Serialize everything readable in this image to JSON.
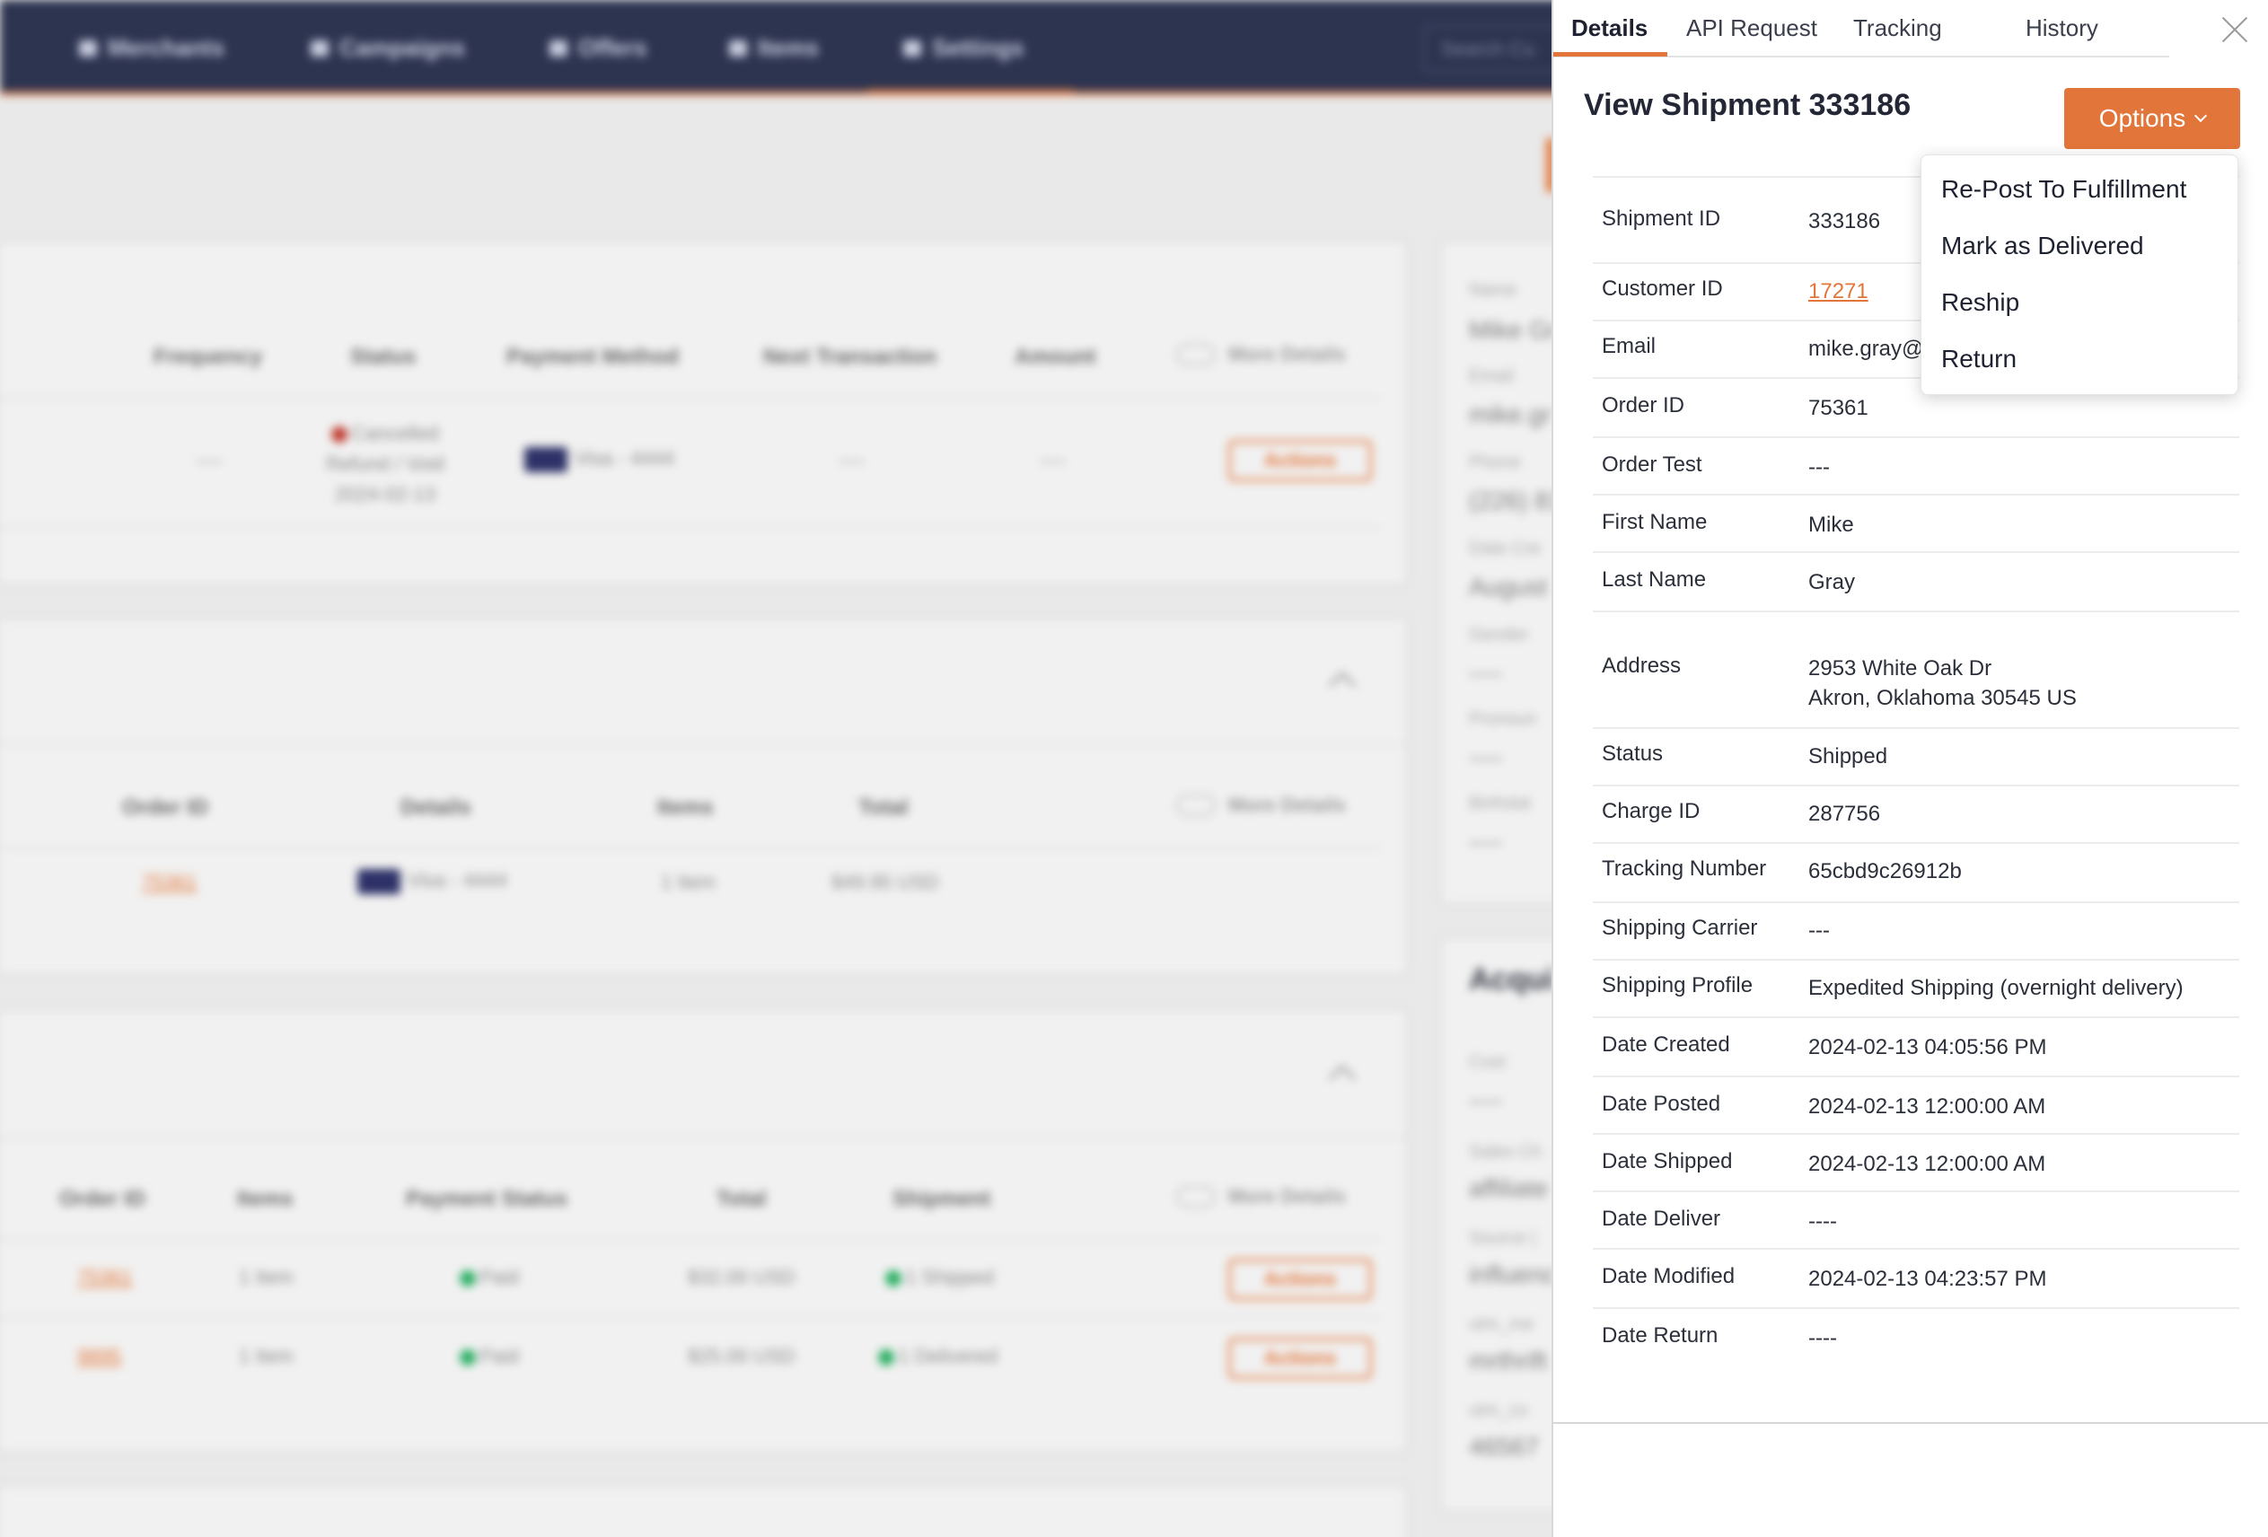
{
  "background": {
    "nav": {
      "items": [
        "Merchants",
        "Campaigns",
        "Offers",
        "Items",
        "Settings"
      ],
      "search_placeholder": "Search Cu"
    },
    "subscriptions": {
      "headers": [
        "Frequency",
        "Status",
        "Payment Method",
        "Next Transaction",
        "Amount"
      ],
      "more_details": "More Details",
      "row": {
        "frequency": "----",
        "status": [
          "Cancelled",
          "Refund / Void",
          "2024-02-13"
        ],
        "payment": "Visa - 4444",
        "next_transaction": "----",
        "amount": "----",
        "actions": "Actions"
      }
    },
    "charges": {
      "headers": [
        "Order ID",
        "Details",
        "Items",
        "Total"
      ],
      "more_details": "More Details",
      "row": {
        "order_id": "75361",
        "payment": "Visa - 4444",
        "items": "1 Item",
        "total": "$49.95 USD"
      }
    },
    "orders": {
      "headers": [
        "Order ID",
        "Items",
        "Payment Status",
        "Total",
        "Shipment"
      ],
      "more_details": "More Details",
      "rows": [
        {
          "order_id": "75361",
          "items": "1 Item",
          "payment_status": "Paid",
          "total": "$32.00 USD",
          "shipment": "1 Shipped",
          "actions": "Actions"
        },
        {
          "order_id": "9895",
          "items": "1 Item",
          "payment_status": "Paid",
          "total": "$25.00 USD",
          "shipment": "1 Delivered",
          "actions": "Actions"
        }
      ]
    },
    "customer_side": {
      "labels": [
        "Name",
        "Email",
        "Phone",
        "Date Cre",
        "Gender",
        "Pronoun",
        "Birthdat"
      ],
      "values": [
        "Mike Gr",
        "mike.gr",
        "(226) 81",
        "August",
        "----",
        "----",
        "----"
      ],
      "acq_title": "Acqui",
      "acq_labels": [
        "Cost",
        "Sales Ch",
        "Source (",
        "utm_me",
        "utm_co"
      ],
      "acq_values": [
        "----",
        "affiliate",
        "influenc",
        "mrthrift",
        "46567"
      ]
    },
    "accent_color": "#e2763a",
    "nav_color": "#2d3450"
  },
  "panel": {
    "tabs": [
      "Details",
      "API Request",
      "Tracking",
      "History"
    ],
    "active_tab": "Details",
    "title": "View Shipment 333186",
    "options_label": "Options",
    "options_menu": [
      "Re-Post To Fulfillment",
      "Mark as Delivered",
      "Reship",
      "Return"
    ],
    "rows": [
      {
        "label": "Shipment ID",
        "value": "333186"
      },
      {
        "label": "Customer ID",
        "value": "17271"
      },
      {
        "label": "Email",
        "value": "mike.gray@"
      },
      {
        "label": "Order ID",
        "value": "75361"
      },
      {
        "label": "Order Test",
        "value": "---"
      },
      {
        "label": "First Name",
        "value": "Mike"
      },
      {
        "label": "Last Name",
        "value": "Gray"
      },
      {
        "label": "Address",
        "value": "2953 White Oak Dr",
        "value2": "Akron, Oklahoma 30545 US"
      },
      {
        "label": "Status",
        "value": "Shipped"
      },
      {
        "label": "Charge ID",
        "value": "287756"
      },
      {
        "label": "Tracking Number",
        "value": "65cbd9c26912b"
      },
      {
        "label": "Shipping Carrier",
        "value": "---"
      },
      {
        "label": "Shipping Profile",
        "value": "Expedited Shipping (overnight delivery)"
      },
      {
        "label": "Date Created",
        "value": "2024-02-13 04:05:56 PM"
      },
      {
        "label": "Date Posted",
        "value": "2024-02-13 12:00:00 AM"
      },
      {
        "label": "Date Shipped",
        "value": "2024-02-13 12:00:00 AM"
      },
      {
        "label": "Date Deliver",
        "value": "----"
      },
      {
        "label": "Date Modified",
        "value": "2024-02-13 04:23:57 PM"
      },
      {
        "label": "Date Return",
        "value": "----"
      }
    ]
  }
}
